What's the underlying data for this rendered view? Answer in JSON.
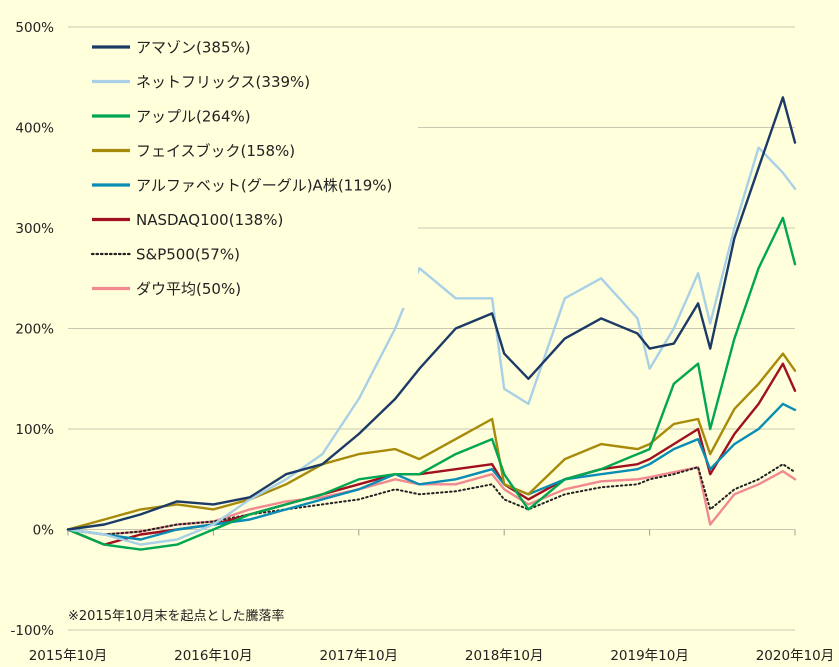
{
  "chart_data": {
    "type": "line",
    "note": "※2015年10月末を起点とした騰落率",
    "y_ticks": [
      "500%",
      "400%",
      "300%",
      "200%",
      "100%",
      "0%",
      "-100%"
    ],
    "y_tick_values": [
      500,
      400,
      300,
      200,
      100,
      0,
      -100
    ],
    "x_ticks": [
      "2015年10月",
      "2016年10月",
      "2017年10月",
      "2018年10月",
      "2019年10月",
      "2020年10月"
    ],
    "ylim": [
      -100,
      500
    ],
    "grid": "horizontal",
    "legend_position": "top-left",
    "x_dates": [
      "2015-10",
      "2016-01",
      "2016-04",
      "2016-07",
      "2016-10",
      "2017-01",
      "2017-04",
      "2017-07",
      "2017-10",
      "2018-01",
      "2018-03",
      "2018-06",
      "2018-09",
      "2018-10",
      "2018-12",
      "2019-03",
      "2019-06",
      "2019-09",
      "2019-10",
      "2019-12",
      "2020-02",
      "2020-03",
      "2020-05",
      "2020-07",
      "2020-09",
      "2020-10"
    ],
    "series": [
      {
        "name": "アマゾン(385%)",
        "color": "#1B3A66",
        "style": "solid",
        "values": [
          0,
          5,
          15,
          28,
          25,
          32,
          55,
          65,
          95,
          130,
          160,
          200,
          215,
          175,
          150,
          190,
          210,
          195,
          180,
          185,
          225,
          180,
          290,
          360,
          430,
          385
        ]
      },
      {
        "name": "ネットフリックス(339%)",
        "color": "#A8D0E6",
        "style": "solid",
        "values": [
          0,
          -5,
          -15,
          -10,
          5,
          30,
          50,
          75,
          130,
          200,
          260,
          230,
          230,
          140,
          125,
          230,
          250,
          210,
          160,
          200,
          255,
          205,
          300,
          380,
          355,
          339
        ]
      },
      {
        "name": "アップル(264%)",
        "color": "#00A651",
        "style": "solid",
        "values": [
          0,
          -15,
          -20,
          -15,
          0,
          15,
          25,
          35,
          50,
          55,
          55,
          75,
          90,
          55,
          20,
          50,
          60,
          75,
          80,
          145,
          165,
          100,
          190,
          260,
          310,
          264
        ]
      },
      {
        "name": "フェイスブック(158%)",
        "color": "#A88A0A",
        "style": "solid",
        "values": [
          0,
          10,
          20,
          25,
          20,
          30,
          45,
          65,
          75,
          80,
          70,
          90,
          110,
          45,
          35,
          70,
          85,
          80,
          85,
          105,
          110,
          75,
          120,
          145,
          175,
          158
        ]
      },
      {
        "name": "アルファベット(グーグル)A株(119%)",
        "color": "#0A8DB5",
        "style": "solid",
        "values": [
          0,
          -5,
          -10,
          0,
          5,
          10,
          20,
          30,
          40,
          55,
          45,
          50,
          60,
          45,
          35,
          50,
          55,
          60,
          65,
          80,
          90,
          60,
          85,
          100,
          125,
          119
        ]
      },
      {
        "name": "NASDAQ100(138%)",
        "color": "#A0101E",
        "style": "solid",
        "values": [
          0,
          -15,
          -5,
          0,
          5,
          15,
          25,
          35,
          45,
          55,
          55,
          60,
          65,
          45,
          30,
          50,
          60,
          65,
          70,
          85,
          100,
          55,
          95,
          125,
          165,
          138
        ]
      },
      {
        "name": "S&P500(57%)",
        "color": "#222222",
        "style": "dotted",
        "values": [
          0,
          -5,
          -2,
          5,
          8,
          15,
          20,
          25,
          30,
          40,
          35,
          38,
          45,
          30,
          20,
          35,
          42,
          45,
          50,
          55,
          62,
          20,
          40,
          50,
          65,
          57
        ]
      },
      {
        "name": "ダウ平均(50%)",
        "color": "#F08A90",
        "style": "solid",
        "values": [
          0,
          -5,
          -2,
          5,
          8,
          20,
          28,
          32,
          40,
          50,
          45,
          45,
          55,
          40,
          25,
          40,
          48,
          50,
          52,
          57,
          62,
          5,
          35,
          45,
          58,
          50
        ]
      }
    ]
  }
}
